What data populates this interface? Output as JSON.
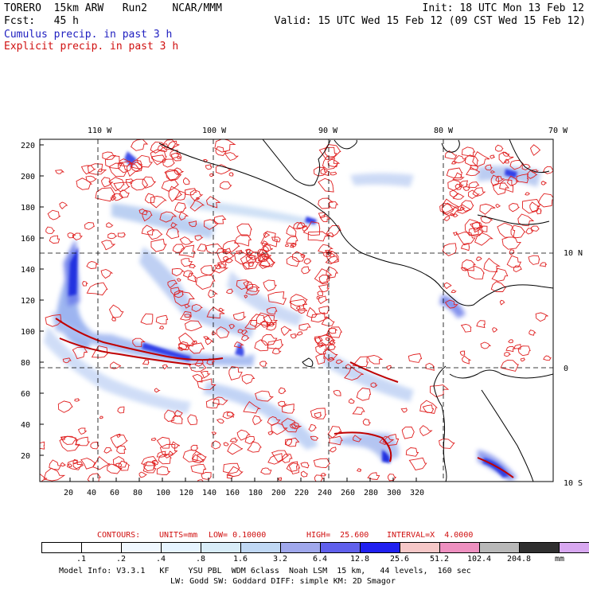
{
  "header": {
    "title": "TORERO  15km ARW   Run2    NCAR/MMM",
    "init": "Init: 18 UTC Mon 13 Feb 12",
    "fcst": "Fcst:   45 h",
    "valid": "Valid: 15 UTC Wed 15 Feb 12 (09 CST Wed 15 Feb 12)",
    "legend_cumulus": "Cumulus precip. in past 3 h",
    "legend_explicit": "Explicit precip. in past 3 h"
  },
  "map": {
    "lon_labels": [
      "110 W",
      "100 W",
      "90 W",
      "80 W",
      "70 W"
    ],
    "lat_labels": [
      "10 N",
      "0",
      "10 S"
    ],
    "y_ticks": [
      "220",
      "200",
      "180",
      "160",
      "140",
      "120",
      "100",
      "80",
      "60",
      "40",
      "20"
    ],
    "x_ticks": [
      "20",
      "40",
      "60",
      "80",
      "100",
      "120",
      "140",
      "160",
      "180",
      "200",
      "220",
      "240",
      "260",
      "280",
      "300",
      "320"
    ]
  },
  "contour_info": {
    "contours": "CONTOURS:",
    "units": "UNITS=mm",
    "low": "LOW= 0.10000",
    "high": "HIGH=  25.600",
    "interval": "INTERVAL=X  4.0000"
  },
  "colorbar": {
    "levels": [
      ".1",
      ".2",
      ".4",
      ".8",
      "1.6",
      "3.2",
      "6.4",
      "12.8",
      "25.6",
      "51.2",
      "102.4",
      "204.8"
    ],
    "unit": "mm",
    "colors": [
      "#ffffff",
      "#ffffff",
      "#f0f8ff",
      "#e6f4ff",
      "#d8ecf8",
      "#c0d8f4",
      "#a0a8ec",
      "#6060ec",
      "#2020f0",
      "#f6c8c8",
      "#ee90c0",
      "#b8b8b8",
      "#303030",
      "#d8a8f0"
    ]
  },
  "model_info": {
    "line1": "Model Info: V3.3.1   KF    YSU PBL  WDM 6class  Noah LSM  15 km,   44 levels,  160 sec",
    "line2": "LW: Godd SW: Goddard DIFF: simple KM: 2D Smagor"
  }
}
